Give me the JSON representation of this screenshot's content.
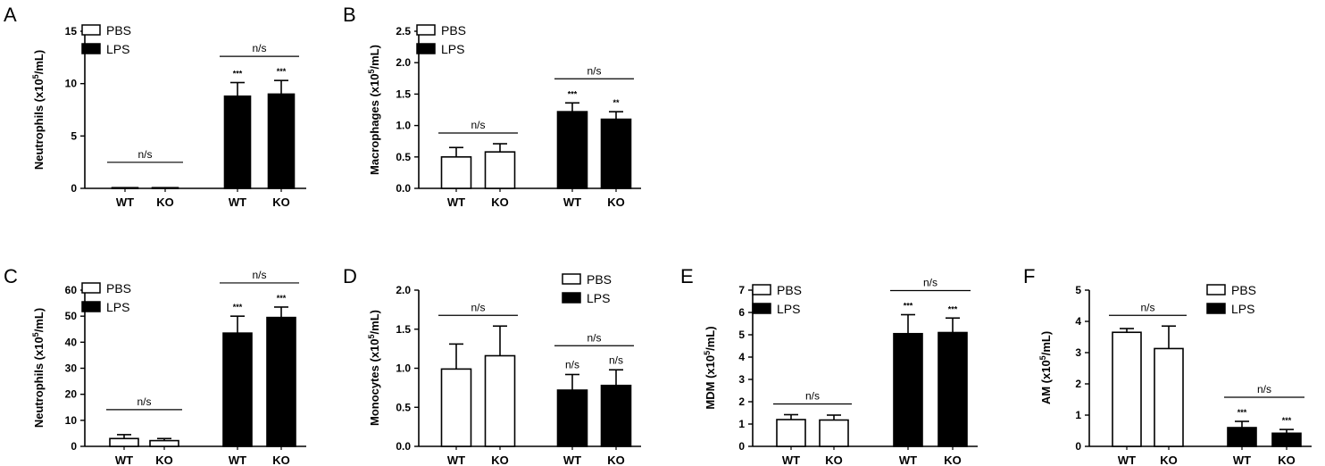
{
  "chart_data": [
    {
      "panel": "A",
      "type": "bar",
      "ylabel": "Neutrophils (x10^5/mL)",
      "ylabel_parts": [
        "Neutrophils (x10",
        "5",
        "/mL)"
      ],
      "ylim": [
        0,
        15
      ],
      "yticks": [
        0,
        5,
        10,
        15
      ],
      "categories": [
        "WT",
        "KO",
        "WT",
        "KO"
      ],
      "groups": [
        "PBS",
        "PBS",
        "LPS",
        "LPS"
      ],
      "values": [
        0.05,
        0.02,
        8.8,
        9.0
      ],
      "errors": [
        0.05,
        0.02,
        1.3,
        1.3
      ],
      "annotations": [
        "",
        "",
        "***",
        "***"
      ],
      "ns_brackets": [
        [
          0,
          1
        ],
        [
          2,
          3
        ]
      ],
      "legend": [
        "PBS",
        "LPS"
      ],
      "legend_position": "top-left"
    },
    {
      "panel": "B",
      "type": "bar",
      "ylabel": "Macrophages (x10^5/mL)",
      "ylabel_parts": [
        "Macrophages (x10",
        "5",
        "/mL)"
      ],
      "ylim": [
        0,
        2.5
      ],
      "yticks": [
        0.0,
        0.5,
        1.0,
        1.5,
        2.0,
        2.5
      ],
      "categories": [
        "WT",
        "KO",
        "WT",
        "KO"
      ],
      "groups": [
        "PBS",
        "PBS",
        "LPS",
        "LPS"
      ],
      "values": [
        0.5,
        0.58,
        1.22,
        1.1
      ],
      "errors": [
        0.15,
        0.13,
        0.14,
        0.12
      ],
      "annotations": [
        "",
        "",
        "***",
        "**"
      ],
      "ns_brackets": [
        [
          0,
          1
        ],
        [
          2,
          3
        ]
      ],
      "legend": [
        "PBS",
        "LPS"
      ],
      "legend_position": "top-left"
    },
    {
      "panel": "C",
      "type": "bar",
      "ylabel": "Neutrophils (x10^5/mL)",
      "ylabel_parts": [
        "Neutrophils (x10",
        "5",
        "/mL)"
      ],
      "ylim": [
        0,
        60
      ],
      "yticks": [
        0,
        10,
        20,
        30,
        40,
        50,
        60
      ],
      "categories": [
        "WT",
        "KO",
        "WT",
        "KO"
      ],
      "groups": [
        "PBS",
        "PBS",
        "LPS",
        "LPS"
      ],
      "values": [
        3.0,
        2.2,
        43.5,
        49.5
      ],
      "errors": [
        1.5,
        0.8,
        6.5,
        4.0
      ],
      "annotations": [
        "",
        "",
        "***",
        "***"
      ],
      "ns_brackets": [
        [
          0,
          1
        ],
        [
          2,
          3
        ]
      ],
      "legend": [
        "PBS",
        "LPS"
      ],
      "legend_position": "top-left"
    },
    {
      "panel": "D",
      "type": "bar",
      "ylabel": "Monocytes (x10^5/mL)",
      "ylabel_parts": [
        "Monocytes (x10",
        "5",
        "/mL)"
      ],
      "ylim": [
        0,
        2.0
      ],
      "yticks": [
        0.0,
        0.5,
        1.0,
        1.5,
        2.0
      ],
      "categories": [
        "WT",
        "KO",
        "WT",
        "KO"
      ],
      "groups": [
        "PBS",
        "PBS",
        "LPS",
        "LPS"
      ],
      "values": [
        0.99,
        1.16,
        0.72,
        0.78
      ],
      "errors": [
        0.32,
        0.38,
        0.2,
        0.2
      ],
      "annotations": [
        "",
        "",
        "n/s",
        "n/s"
      ],
      "ns_brackets": [
        [
          0,
          1
        ],
        [
          2,
          3
        ]
      ],
      "legend": [
        "PBS",
        "LPS"
      ],
      "legend_position": "top-right"
    },
    {
      "panel": "E",
      "type": "bar",
      "ylabel": "MDM (x10^5/mL)",
      "ylabel_parts": [
        "MDM (x10",
        "5",
        "/mL)"
      ],
      "ylim": [
        0,
        7
      ],
      "yticks": [
        0,
        1,
        2,
        3,
        4,
        5,
        6,
        7
      ],
      "categories": [
        "WT",
        "KO",
        "WT",
        "KO"
      ],
      "groups": [
        "PBS",
        "PBS",
        "LPS",
        "LPS"
      ],
      "values": [
        1.2,
        1.18,
        5.05,
        5.1
      ],
      "errors": [
        0.22,
        0.22,
        0.85,
        0.65
      ],
      "annotations": [
        "",
        "",
        "***",
        "***"
      ],
      "ns_brackets": [
        [
          0,
          1
        ],
        [
          2,
          3
        ]
      ],
      "legend": [
        "PBS",
        "LPS"
      ],
      "legend_position": "top-left"
    },
    {
      "panel": "F",
      "type": "bar",
      "ylabel": "AM (x10^5/mL)",
      "ylabel_parts": [
        "AM (x10",
        "5",
        "/mL)"
      ],
      "ylim": [
        0,
        5
      ],
      "yticks": [
        0,
        1,
        2,
        3,
        4,
        5
      ],
      "categories": [
        "WT",
        "KO",
        "WT",
        "KO"
      ],
      "groups": [
        "PBS",
        "PBS",
        "LPS",
        "LPS"
      ],
      "values": [
        3.65,
        3.13,
        0.6,
        0.42
      ],
      "errors": [
        0.12,
        0.72,
        0.2,
        0.12
      ],
      "annotations": [
        "",
        "",
        "***",
        "***"
      ],
      "ns_brackets": [
        [
          0,
          1
        ],
        [
          2,
          3
        ]
      ],
      "legend": [
        "PBS",
        "LPS"
      ],
      "legend_position": "top-right"
    }
  ],
  "ns_text": "n/s",
  "colors": {
    "PBS": "#ffffff",
    "LPS": "#000000",
    "axis": "#000000"
  }
}
